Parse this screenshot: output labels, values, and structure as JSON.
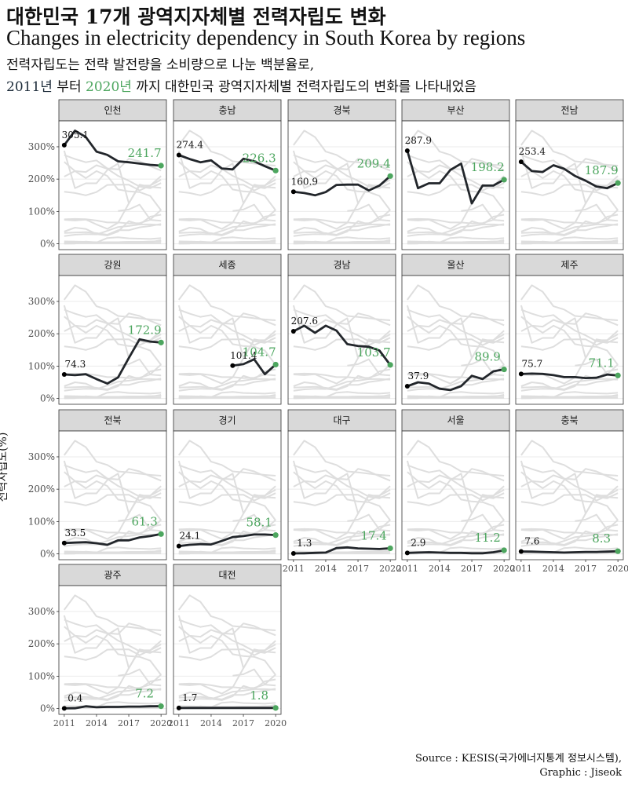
{
  "header": {
    "title_ko": "대한민국 17개 광역지자체별 전력자립도 변화",
    "title_en": "Changes in electricity dependency in South Korea by regions",
    "subtitle_line1": "전력자립도는 전략 발전량을 소비량으로 나눈 백분율로,",
    "subtitle_start_year": "2011년",
    "subtitle_mid": " 부터 ",
    "subtitle_end_year": "2020년",
    "subtitle_tail": " 까지 대한민국 광역지자체별 전력자립도의 변화를 나타내었음"
  },
  "footer": {
    "source": "Source : KESIS(국가에너지통계 정보시스템),",
    "graphic": "Graphic : Jiseok"
  },
  "colors": {
    "highlight_line": "#22262b",
    "end_point": "#4da65f",
    "background_lines": "#dedede",
    "strip_fill": "#d9d9d9",
    "gridline": "#ebebeb"
  },
  "chart_data": {
    "type": "line",
    "ylabel": "전력자립도(%)",
    "xlabel": "",
    "ylim": [
      0,
      350
    ],
    "yticks": [
      0,
      100,
      200,
      300
    ],
    "ytick_labels": [
      "0%",
      "100%",
      "200%",
      "300%"
    ],
    "xticks": [
      2011,
      2014,
      2017,
      2020
    ],
    "x": [
      2011,
      2012,
      2013,
      2014,
      2015,
      2016,
      2017,
      2018,
      2019,
      2020
    ],
    "grid": true,
    "facets": [
      {
        "name": "인천",
        "start_label": "305.1",
        "end_label": "241.7",
        "values": [
          305.1,
          350,
          330,
          285,
          275,
          255,
          252,
          248,
          244,
          241.7
        ]
      },
      {
        "name": "충남",
        "start_label": "274.4",
        "end_label": "226.3",
        "values": [
          274.4,
          262,
          252,
          258,
          233,
          230,
          263,
          255,
          240,
          226.3
        ]
      },
      {
        "name": "경북",
        "start_label": "160.9",
        "end_label": "209.4",
        "values": [
          160.9,
          157,
          150,
          160,
          182,
          183,
          183,
          165,
          180,
          209.4
        ]
      },
      {
        "name": "부산",
        "start_label": "287.9",
        "end_label": "198.2",
        "values": [
          287.9,
          172,
          187,
          187,
          228,
          248,
          125,
          180,
          180,
          198.2
        ]
      },
      {
        "name": "전남",
        "start_label": "253.4",
        "end_label": "187.9",
        "values": [
          253.4,
          225,
          222,
          243,
          232,
          210,
          195,
          177,
          172,
          187.9
        ]
      },
      {
        "name": "강원",
        "start_label": "74.3",
        "end_label": "172.9",
        "values": [
          74.3,
          72,
          75,
          60,
          46,
          65,
          125,
          183,
          176,
          172.9
        ]
      },
      {
        "name": "세종",
        "start_label": "101.4",
        "end_label": "104.7",
        "values": [
          null,
          null,
          null,
          null,
          null,
          101.4,
          106,
          121,
          75,
          104.7
        ]
      },
      {
        "name": "경남",
        "start_label": "207.6",
        "end_label": "103.7",
        "values": [
          207.6,
          225,
          203,
          225,
          210,
          168,
          162,
          160,
          148,
          103.7
        ]
      },
      {
        "name": "울산",
        "start_label": "37.9",
        "end_label": "89.9",
        "values": [
          37.9,
          50,
          46,
          30,
          26,
          38,
          70,
          60,
          84,
          89.9
        ]
      },
      {
        "name": "제주",
        "start_label": "75.7",
        "end_label": "71.1",
        "values": [
          75.7,
          77,
          76,
          72,
          66,
          66,
          63,
          64,
          74,
          71.1
        ]
      },
      {
        "name": "전북",
        "start_label": "33.5",
        "end_label": "61.3",
        "values": [
          33.5,
          35,
          36,
          33,
          28,
          42,
          42,
          51,
          55,
          61.3
        ]
      },
      {
        "name": "경기",
        "start_label": "24.1",
        "end_label": "58.1",
        "values": [
          24.1,
          28,
          30,
          29,
          40,
          52,
          55,
          60,
          60,
          58.1
        ]
      },
      {
        "name": "대구",
        "start_label": "1.3",
        "end_label": "17.4",
        "values": [
          1.3,
          2,
          3,
          4,
          18,
          20,
          17,
          16,
          15,
          17.4
        ]
      },
      {
        "name": "서울",
        "start_label": "2.9",
        "end_label": "11.2",
        "values": [
          2.9,
          4,
          5,
          4,
          3,
          3,
          2,
          2,
          5,
          11.2
        ]
      },
      {
        "name": "충북",
        "start_label": "7.6",
        "end_label": "8.3",
        "values": [
          7.6,
          7,
          6,
          5,
          4,
          5,
          6,
          6,
          7,
          8.3
        ]
      },
      {
        "name": "광주",
        "start_label": "0.4",
        "end_label": "7.2",
        "values": [
          0.4,
          1,
          7,
          4,
          5,
          5,
          6,
          6,
          7,
          7.2
        ]
      },
      {
        "name": "대전",
        "start_label": "1.7",
        "end_label": "1.8",
        "values": [
          1.7,
          2,
          2,
          2,
          2,
          2,
          2,
          2,
          2,
          1.8
        ]
      }
    ]
  }
}
